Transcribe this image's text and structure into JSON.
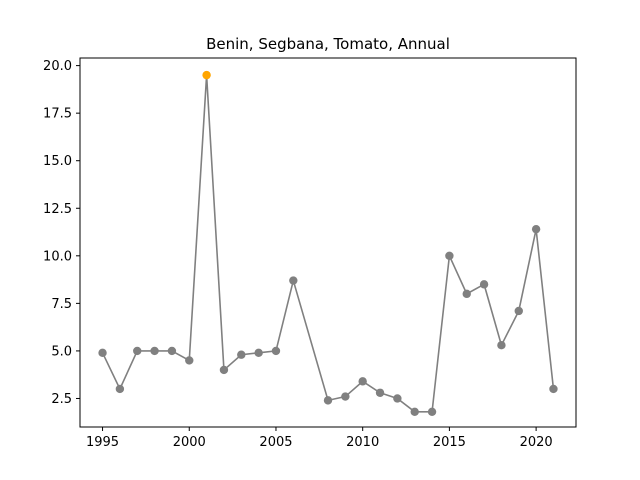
{
  "chart_data": {
    "type": "line",
    "title": "Benin, Segbana, Tomato, Annual",
    "xlabel": "",
    "ylabel": "",
    "xlim": [
      1993.7,
      2022.3
    ],
    "ylim": [
      1.0,
      20.4
    ],
    "xticks": [
      1995,
      2000,
      2005,
      2010,
      2015,
      2020
    ],
    "xtick_labels": [
      "1995",
      "2000",
      "2005",
      "2010",
      "2015",
      "2020"
    ],
    "yticks": [
      2.5,
      5.0,
      7.5,
      10.0,
      12.5,
      15.0,
      17.5,
      20.0
    ],
    "ytick_labels": [
      "2.5",
      "5.0",
      "7.5",
      "10.0",
      "12.5",
      "15.0",
      "17.5",
      "20.0"
    ],
    "grid": false,
    "line_color": "#808080",
    "highlight_color": "#FFA500",
    "series": [
      {
        "x": [
          1995,
          1996,
          1997,
          1998,
          1999,
          2000,
          2001,
          2002,
          2003,
          2004,
          2005,
          2006,
          2008,
          2009,
          2010,
          2011,
          2012,
          2013,
          2014,
          2015,
          2016,
          2017,
          2018,
          2019,
          2020,
          2021
        ],
        "y": [
          4.9,
          3.0,
          5.0,
          5.0,
          5.0,
          4.5,
          19.5,
          4.0,
          4.8,
          4.9,
          5.0,
          8.7,
          2.4,
          2.6,
          3.4,
          2.8,
          2.5,
          1.8,
          1.8,
          10.0,
          8.0,
          8.5,
          5.3,
          7.1,
          11.4,
          3.0
        ],
        "highlight_index": 6
      }
    ]
  }
}
